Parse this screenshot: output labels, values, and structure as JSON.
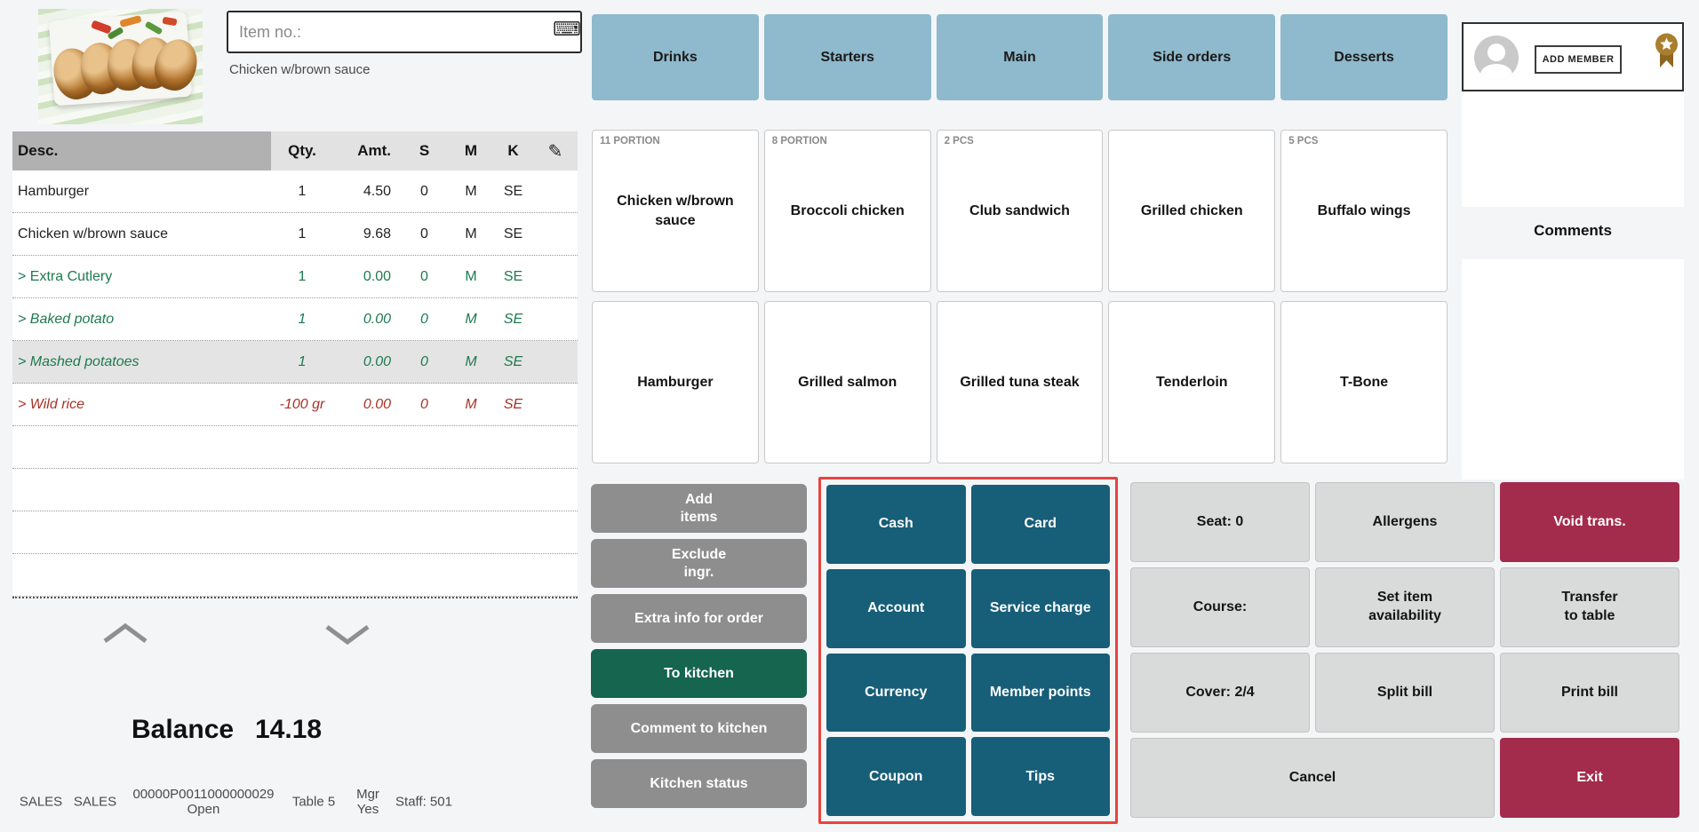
{
  "colors": {
    "teal": "#175e78",
    "catblue": "#8fb9cc",
    "red": "#a32b4b",
    "outline": "#e8433f",
    "green": "#15654f",
    "graybtn": "#8e8e8e",
    "lightbtn": "#d9dbdb",
    "modgreen": "#1d7a50",
    "modred": "#a93226",
    "gold": "#a97e2d"
  },
  "left": {
    "item_no_placeholder": "Item no.:",
    "keyboard_icon": "⌨",
    "selected_item_name": "Chicken w/brown sauce",
    "table": {
      "headers": {
        "desc": "Desc.",
        "qty": "Qty.",
        "amt": "Amt.",
        "s": "S",
        "m": "M",
        "k": "K"
      },
      "edit_icon": "✎",
      "rows": [
        {
          "desc": "Hamburger",
          "qty": "1",
          "amt": "4.50",
          "s": "0",
          "m": "M",
          "k": "SE",
          "variant": "normal",
          "selected": false
        },
        {
          "desc": "Chicken w/brown sauce",
          "qty": "1",
          "amt": "9.68",
          "s": "0",
          "m": "M",
          "k": "SE",
          "variant": "normal",
          "selected": false
        },
        {
          "desc": "> Extra Cutlery",
          "qty": "1",
          "amt": "0.00",
          "s": "0",
          "m": "M",
          "k": "SE",
          "variant": "green",
          "selected": false
        },
        {
          "desc": "> Baked potato",
          "qty": "1",
          "amt": "0.00",
          "s": "0",
          "m": "M",
          "k": "SE",
          "variant": "green-italic",
          "selected": false
        },
        {
          "desc": "> Mashed potatoes",
          "qty": "1",
          "amt": "0.00",
          "s": "0",
          "m": "M",
          "k": "SE",
          "variant": "green-italic",
          "selected": true
        },
        {
          "desc": "> Wild rice",
          "qty": "-100 gr",
          "amt": "0.00",
          "s": "0",
          "m": "M",
          "k": "SE",
          "variant": "red-italic",
          "selected": false
        }
      ],
      "empty_row_count": 4
    },
    "balance_label": "Balance",
    "balance_value": "14.18",
    "status": {
      "sales1": "SALES",
      "sales2": "SALES",
      "receipt_no": "00000P0011000000029",
      "receipt_state": "Open",
      "table": "Table 5",
      "mgr_label": "Mgr",
      "mgr_value": "Yes",
      "staff": "Staff: 501"
    }
  },
  "categories": [
    "Drinks",
    "Starters",
    "Main",
    "Side orders",
    "Desserts"
  ],
  "products": [
    {
      "tag": "11 PORTION",
      "name": "Chicken w/brown\nsauce"
    },
    {
      "tag": "8 PORTION",
      "name": "Broccoli chicken"
    },
    {
      "tag": "2 PCS",
      "name": "Club sandwich"
    },
    {
      "tag": "",
      "name": "Grilled chicken"
    },
    {
      "tag": "5 PCS",
      "name": "Buffalo wings"
    },
    {
      "tag": "",
      "name": "Hamburger"
    },
    {
      "tag": "",
      "name": "Grilled salmon"
    },
    {
      "tag": "",
      "name": "Grilled tuna steak"
    },
    {
      "tag": "",
      "name": "Tenderloin"
    },
    {
      "tag": "",
      "name": "T-Bone"
    }
  ],
  "kitchen_actions": [
    {
      "label": "Add\nitems",
      "variant": "gray"
    },
    {
      "label": "Exclude\ningr.",
      "variant": "gray"
    },
    {
      "label": "Extra info for order",
      "variant": "gray"
    },
    {
      "label": "To kitchen",
      "variant": "green"
    },
    {
      "label": "Comment to kitchen",
      "variant": "gray"
    },
    {
      "label": "Kitchen status",
      "variant": "gray"
    }
  ],
  "payment_buttons": [
    "Cash",
    "Card",
    "Account",
    "Service charge",
    "Currency",
    "Member points",
    "Coupon",
    "Tips"
  ],
  "function_buttons": [
    {
      "label": "Seat: 0",
      "variant": "gray",
      "span": 1
    },
    {
      "label": "Allergens",
      "variant": "gray",
      "span": 1
    },
    {
      "label": "Void trans.",
      "variant": "red",
      "span": 1
    },
    {
      "label": "Course:",
      "variant": "gray",
      "span": 1
    },
    {
      "label": "Set item\navailability",
      "variant": "gray",
      "span": 1
    },
    {
      "label": "Transfer\nto table",
      "variant": "gray",
      "span": 1
    },
    {
      "label": "Cover: 2/4",
      "variant": "gray",
      "span": 1
    },
    {
      "label": "Split bill",
      "variant": "gray",
      "span": 1
    },
    {
      "label": "Print bill",
      "variant": "gray",
      "span": 1
    },
    {
      "label": "Cancel",
      "variant": "gray",
      "span": 2
    },
    {
      "label": "Exit",
      "variant": "red",
      "span": 1
    }
  ],
  "member": {
    "add_member_label": "ADD MEMBER",
    "comments_title": "Comments"
  }
}
